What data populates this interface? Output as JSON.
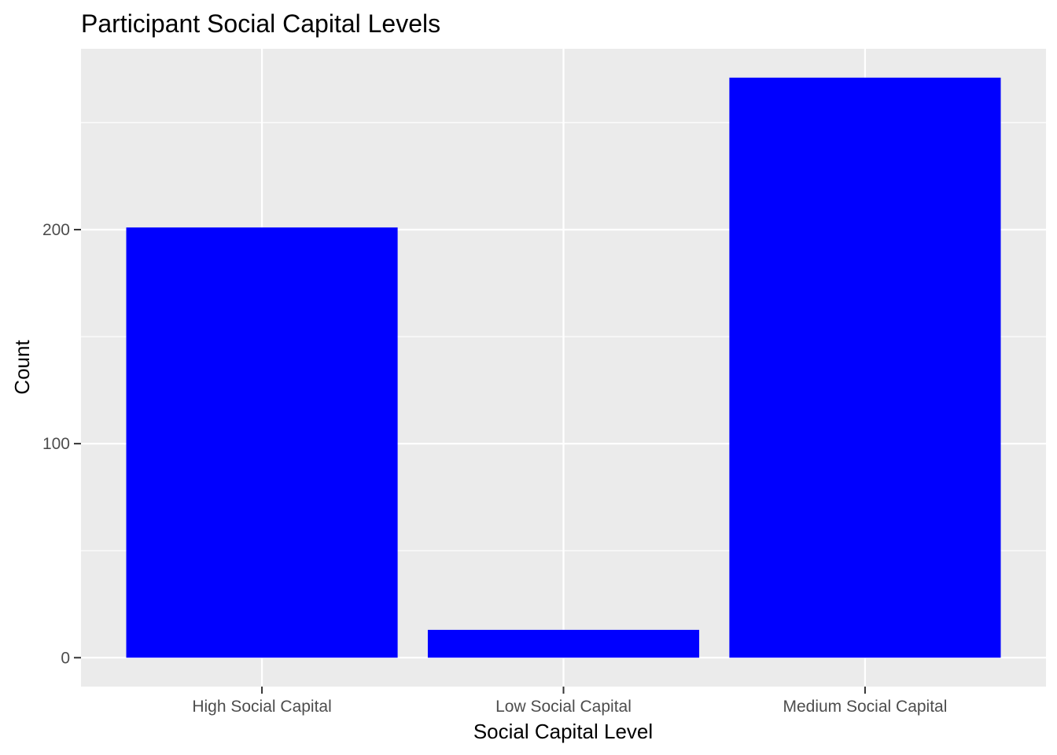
{
  "chart_data": {
    "type": "bar",
    "title": "Participant Social Capital Levels",
    "xlabel": "Social Capital Level",
    "ylabel": "Count",
    "categories": [
      "High Social Capital",
      "Low Social Capital",
      "Medium Social Capital"
    ],
    "values": [
      201,
      13,
      271
    ],
    "ylim": [
      -13.5,
      284.5
    ],
    "yticks": [
      0,
      100,
      200
    ],
    "ytick_labels": [
      "0",
      "100",
      "200"
    ],
    "grid": true,
    "bar_color": "#0000FF",
    "panel_background": "#EBEBEB",
    "grid_color": "#FFFFFF",
    "tick_color": "#333333"
  }
}
